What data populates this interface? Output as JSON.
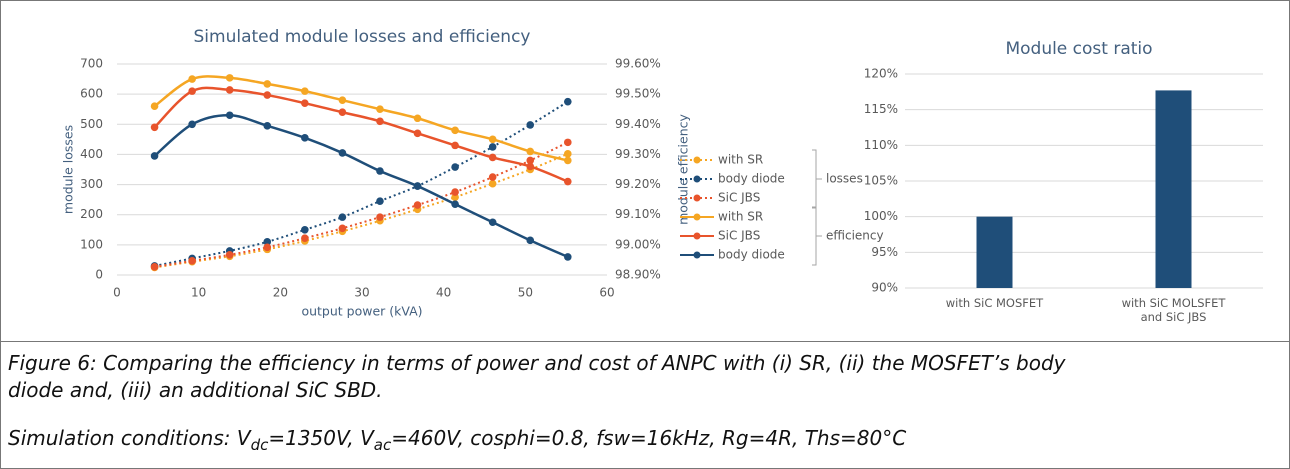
{
  "chart_data": [
    {
      "type": "line",
      "title": "Simulated module losses and efficiency",
      "x_label": "output power (kVA)",
      "y_label": "module losses",
      "y2_label": "module efficiency",
      "x": [
        4.6,
        9.2,
        13.8,
        18.4,
        23,
        27.6,
        32.2,
        36.8,
        41.4,
        46,
        50.6,
        55.2
      ],
      "xlim": [
        0,
        60
      ],
      "xticks": [
        0,
        10,
        20,
        30,
        40,
        50,
        60
      ],
      "ylim": [
        0,
        700
      ],
      "yticks": [
        0,
        100,
        200,
        300,
        400,
        500,
        600,
        700
      ],
      "y2lim": [
        98.9,
        99.6
      ],
      "y2ticks": [
        {
          "value": 98.9,
          "label": "98.90%"
        },
        {
          "value": 99.0,
          "label": "99.00%"
        },
        {
          "value": 99.1,
          "label": "99.10%"
        },
        {
          "value": 99.2,
          "label": "99.20%"
        },
        {
          "value": 99.3,
          "label": "99.30%"
        },
        {
          "value": 99.4,
          "label": "99.40%"
        },
        {
          "value": 99.5,
          "label": "99.50%"
        },
        {
          "value": 99.6,
          "label": "99.60%"
        }
      ],
      "grid": true,
      "legend_groups": [
        "losses",
        "efficiency"
      ],
      "series": [
        {
          "name": "with SR",
          "color": "#f5a623",
          "dashed": true,
          "group": 0,
          "values": [
            25,
            44,
            62,
            85,
            113,
            145,
            180,
            218,
            258,
            303,
            350,
            402
          ]
        },
        {
          "name": "body diode",
          "color": "#1f4e79",
          "dashed": true,
          "group": 0,
          "values": [
            30,
            55,
            80,
            110,
            150,
            192,
            245,
            295,
            358,
            425,
            498,
            575
          ]
        },
        {
          "name": "SiC JBS",
          "color": "#e8542c",
          "dashed": true,
          "group": 0,
          "values": [
            27,
            47,
            67,
            92,
            122,
            155,
            192,
            232,
            275,
            325,
            380,
            440
          ]
        },
        {
          "name": "with SR",
          "color": "#f5a623",
          "dashed": false,
          "group": 1,
          "axis": "y2",
          "values": [
            99.46,
            99.55,
            99.554,
            99.534,
            99.51,
            99.48,
            99.45,
            99.42,
            99.38,
            99.35,
            99.31,
            99.28
          ]
        },
        {
          "name": "SiC JBS",
          "color": "#e8542c",
          "dashed": false,
          "group": 1,
          "axis": "y2",
          "values": [
            99.39,
            99.51,
            99.514,
            99.497,
            99.47,
            99.44,
            99.41,
            99.37,
            99.33,
            99.29,
            99.26,
            99.21
          ]
        },
        {
          "name": "body diode",
          "color": "#1f4e79",
          "dashed": false,
          "group": 1,
          "axis": "y2",
          "values": [
            99.295,
            99.4,
            99.43,
            99.395,
            99.355,
            99.305,
            99.245,
            99.195,
            99.135,
            99.075,
            99.015,
            98.96
          ]
        }
      ]
    },
    {
      "type": "bar",
      "title": "Module cost ratio",
      "categories": [
        "with SiC MOSFET",
        "with SiC MOLSFET and SiC JBS"
      ],
      "values": [
        100,
        117.7
      ],
      "color": "#1f4e79",
      "ylim": [
        90,
        120
      ],
      "yticks": [
        {
          "value": 90,
          "label": "90%"
        },
        {
          "value": 95,
          "label": "95%"
        },
        {
          "value": 100,
          "label": "100%"
        },
        {
          "value": 105,
          "label": "105%"
        },
        {
          "value": 110,
          "label": "110%"
        },
        {
          "value": 115,
          "label": "115%"
        },
        {
          "value": 120,
          "label": "120%"
        }
      ],
      "grid": true
    }
  ],
  "caption": {
    "text": "Figure 6: Comparing the efficiency in terms of power and cost of ANPC with (i) SR, (ii) the MOSFET’s body diode and, (iii) an additional SiC SBD.",
    "conditions": [
      {
        "text": "Simulation conditions: V"
      },
      {
        "text": "dc",
        "sub": true
      },
      {
        "text": "=1350V, V"
      },
      {
        "text": "ac",
        "sub": true
      },
      {
        "text": "=460V, cosphi=0.8, fsw=16kHz, Rg=4R, Ths=80°C"
      }
    ]
  }
}
